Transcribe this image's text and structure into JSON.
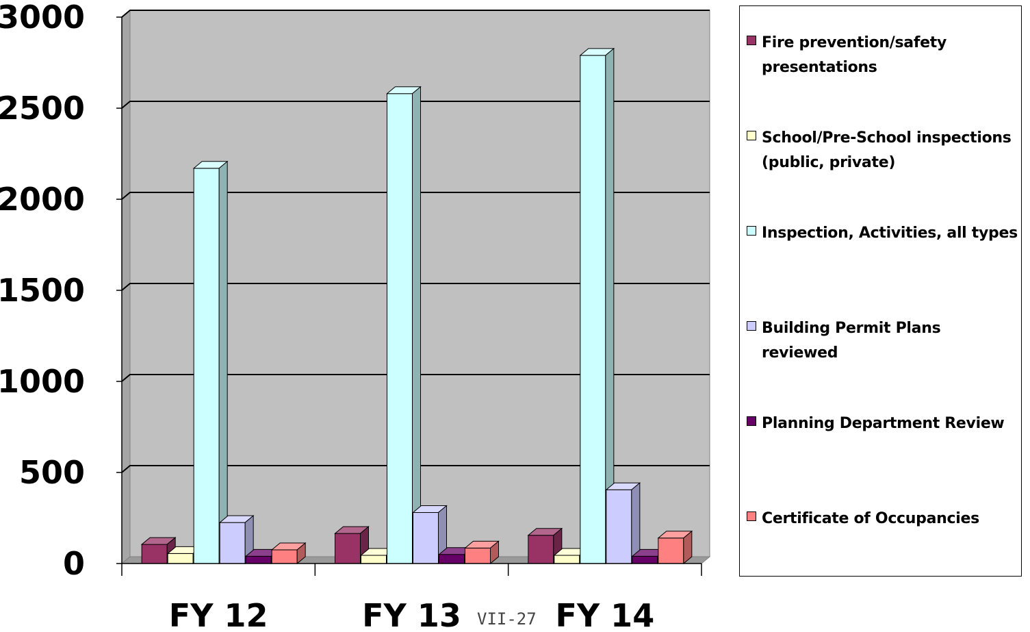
{
  "chart_data": {
    "type": "bar",
    "categories": [
      "FY 12",
      "FY 13",
      "FY 14"
    ],
    "series": [
      {
        "name": "Fire prevention/safety presentations",
        "color": "#993366",
        "values": [
          105,
          165,
          155
        ]
      },
      {
        "name": "School/Pre-School inspections (public, private)",
        "color": "#ffffcc",
        "values": [
          55,
          45,
          45
        ]
      },
      {
        "name": "Inspection, Activities, all types",
        "color": "#ccffff",
        "values": [
          2170,
          2580,
          2790
        ]
      },
      {
        "name": "Building Permit Plans reviewed",
        "color": "#ccccff",
        "values": [
          225,
          280,
          405
        ]
      },
      {
        "name": "Planning Department Review",
        "color": "#660066",
        "values": [
          40,
          50,
          40
        ]
      },
      {
        "name": "Certificate of Occupancies",
        "color": "#ff8080",
        "values": [
          75,
          85,
          140
        ]
      }
    ],
    "yticks": [
      "0",
      "500",
      "1000",
      "1500",
      "2000",
      "2500",
      "3000"
    ],
    "ylim": [
      0,
      3000
    ],
    "title": "",
    "xlabel": "",
    "ylabel": "",
    "grid": true,
    "legend_position": "right",
    "wall_color": "#c0c0c0"
  },
  "footer": {
    "page_label": "VII-27"
  }
}
